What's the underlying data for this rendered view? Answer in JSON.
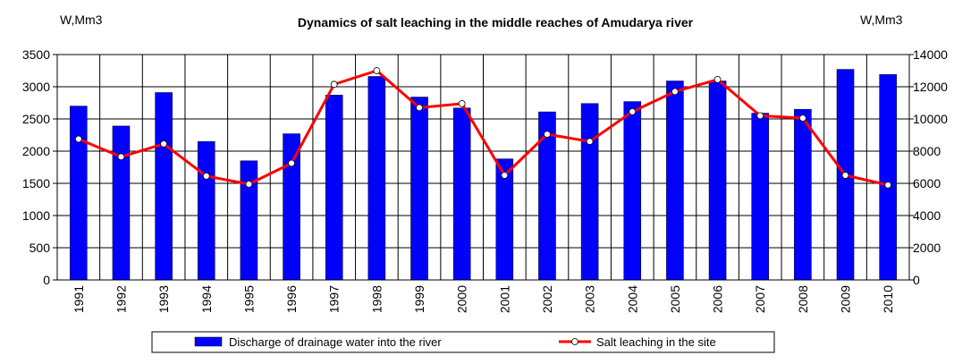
{
  "chart_data": {
    "type": "bar",
    "title": "Dynamics of salt leaching in the middle reaches of Amudarya river",
    "ylabel_left": "W,Mm3",
    "ylabel_right": "W,Mm3",
    "categories": [
      "1991",
      "1992",
      "1993",
      "1994",
      "1995",
      "1996",
      "1997",
      "1998",
      "1999",
      "2000",
      "2001",
      "2002",
      "2003",
      "2004",
      "2005",
      "2006",
      "2007",
      "2008",
      "2009",
      "2010"
    ],
    "ylim_left": [
      0,
      3500
    ],
    "yticks_left": [
      "0",
      "500",
      "1000",
      "1500",
      "2000",
      "2500",
      "3000",
      "3500"
    ],
    "ylim_right": [
      0,
      14000
    ],
    "yticks_right": [
      "0",
      "2000",
      "4000",
      "6000",
      "8000",
      "10000",
      "12000",
      "14000"
    ],
    "grid": true,
    "legend_position": "bottom",
    "series": [
      {
        "name": "Discharge of drainage water into the river",
        "type": "bar",
        "axis": "left",
        "color": "#0000ff",
        "values": [
          2700,
          2390,
          2910,
          2150,
          1850,
          2270,
          2870,
          3160,
          2840,
          2670,
          1880,
          2610,
          2740,
          2770,
          3090,
          3090,
          2590,
          2650,
          3270,
          3190
        ]
      },
      {
        "name": "Salt leaching in the site",
        "type": "line",
        "axis": "right",
        "color": "#ff0000",
        "values": [
          8750,
          7650,
          8450,
          6450,
          5950,
          7250,
          12150,
          13000,
          10700,
          10950,
          6500,
          9050,
          8600,
          10450,
          11700,
          12450,
          10200,
          10050,
          6500,
          5900
        ]
      }
    ]
  }
}
